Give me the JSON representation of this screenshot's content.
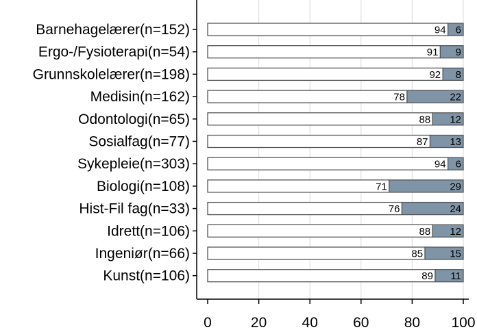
{
  "chart_data": {
    "type": "bar",
    "orientation": "horizontal",
    "stacked": true,
    "categories": [
      "Barnehagelærer(n=152)",
      "Ergo-/Fysioterapi(n=54)",
      "Grunnskolelærer(n=198)",
      "Medisin(n=162)",
      "Odontologi(n=65)",
      "Sosialfag(n=77)",
      "Sykepleie(n=303)",
      "Biologi(n=108)",
      "Hist-Fil fag(n=33)",
      "Idrett(n=106)",
      "Ingeniør(n=66)",
      "Kunst(n=106)"
    ],
    "series": [
      {
        "values": [
          94,
          91,
          92,
          78,
          88,
          87,
          94,
          71,
          76,
          88,
          85,
          89
        ],
        "color": "#ffffff"
      },
      {
        "values": [
          6,
          9,
          8,
          22,
          12,
          13,
          6,
          29,
          24,
          12,
          15,
          11
        ],
        "color": "#8094a8"
      }
    ],
    "xlim": [
      0,
      100
    ],
    "xticks": [
      "0",
      "20",
      "40",
      "60",
      "80",
      "100"
    ],
    "grid": true,
    "legend": "none",
    "title": "",
    "xlabel": "",
    "ylabel": "",
    "colors": {
      "grid": "#e0e0e0",
      "axis": "#000000",
      "bar_edge": "#555555"
    }
  }
}
